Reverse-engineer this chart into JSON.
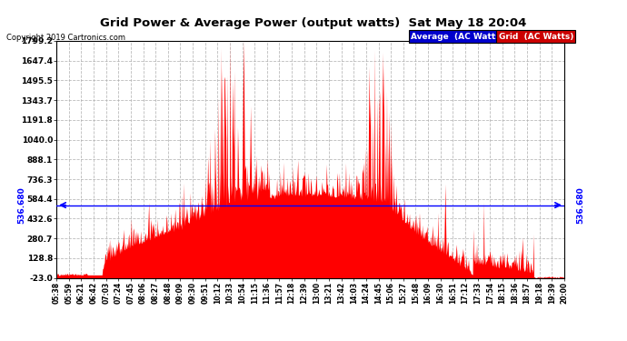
{
  "title": "Grid Power & Average Power (output watts)  Sat May 18 20:04",
  "copyright": "Copyright 2019 Cartronics.com",
  "average_value": 536.68,
  "y_ticks": [
    -23.0,
    128.8,
    280.7,
    432.6,
    584.4,
    736.3,
    888.1,
    1040.0,
    1191.8,
    1343.7,
    1495.5,
    1647.4,
    1799.2
  ],
  "ylim_min": -23.0,
  "ylim_max": 1799.2,
  "x_labels": [
    "05:38",
    "05:59",
    "06:21",
    "06:42",
    "07:03",
    "07:24",
    "07:45",
    "08:06",
    "08:27",
    "08:48",
    "09:09",
    "09:30",
    "09:51",
    "10:12",
    "10:33",
    "10:54",
    "11:15",
    "11:36",
    "11:57",
    "12:18",
    "12:39",
    "13:00",
    "13:21",
    "13:42",
    "14:03",
    "14:24",
    "14:45",
    "15:06",
    "15:27",
    "15:48",
    "16:09",
    "16:30",
    "16:51",
    "17:12",
    "17:33",
    "17:54",
    "18:15",
    "18:36",
    "18:57",
    "19:18",
    "19:39",
    "20:00"
  ],
  "grid_fill_color": "#ff0000",
  "average_line_color": "#0000ff",
  "bg_color": "#ffffff",
  "grid_line_color": "#aaaaaa",
  "legend_avg_color": "#0000cc",
  "legend_grid_color": "#cc0000"
}
